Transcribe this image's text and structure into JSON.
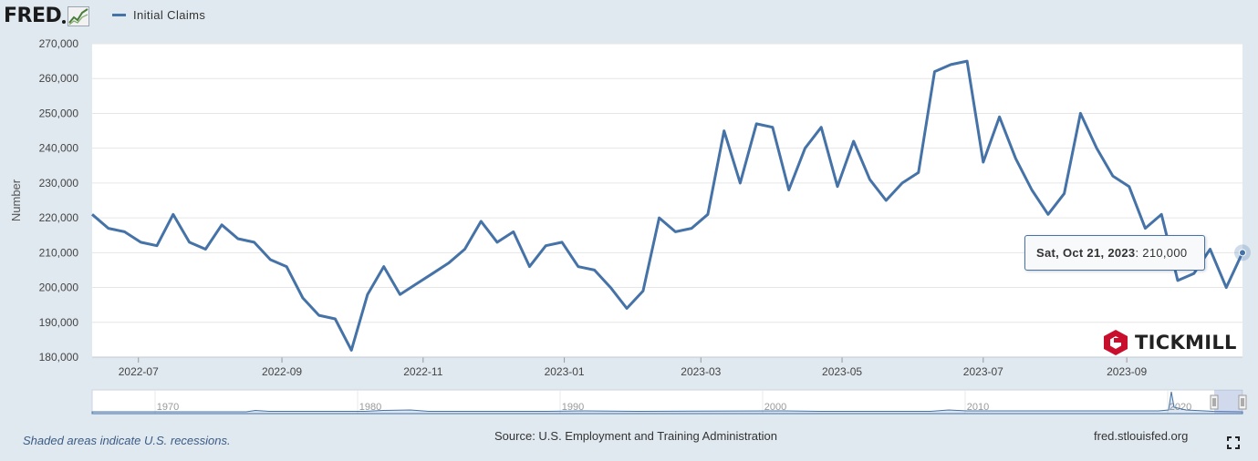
{
  "header": {
    "logo_text": "FRED",
    "logo_icon": "fred-chart-icon",
    "legend_label": "Initial Claims",
    "series_color": "#4572a7"
  },
  "chart_data": {
    "type": "line",
    "ylabel": "Number",
    "ylim": [
      180000,
      270000
    ],
    "yticks": [
      180000,
      190000,
      200000,
      210000,
      220000,
      230000,
      240000,
      250000,
      260000,
      270000
    ],
    "ytick_labels": [
      "180,000",
      "190,000",
      "200,000",
      "210,000",
      "220,000",
      "230,000",
      "240,000",
      "250,000",
      "260,000",
      "270,000"
    ],
    "xlim": [
      "2022-06-11",
      "2023-10-21"
    ],
    "xticks": [
      "2022-07-01",
      "2022-09-01",
      "2022-11-01",
      "2023-01-01",
      "2023-03-01",
      "2023-05-01",
      "2023-07-01",
      "2023-09-01"
    ],
    "xtick_labels": [
      "2022-07",
      "2022-09",
      "2022-11",
      "2023-01",
      "2023-03",
      "2023-05",
      "2023-07",
      "2023-09"
    ],
    "grid": true,
    "series": [
      {
        "name": "Initial Claims",
        "color": "#4572a7",
        "points": [
          [
            "2022-06-11",
            221000
          ],
          [
            "2022-06-18",
            217000
          ],
          [
            "2022-06-25",
            216000
          ],
          [
            "2022-07-02",
            213000
          ],
          [
            "2022-07-09",
            212000
          ],
          [
            "2022-07-16",
            221000
          ],
          [
            "2022-07-23",
            213000
          ],
          [
            "2022-07-30",
            211000
          ],
          [
            "2022-08-06",
            218000
          ],
          [
            "2022-08-13",
            214000
          ],
          [
            "2022-08-20",
            213000
          ],
          [
            "2022-08-27",
            208000
          ],
          [
            "2022-09-03",
            206000
          ],
          [
            "2022-09-10",
            197000
          ],
          [
            "2022-09-17",
            192000
          ],
          [
            "2022-09-24",
            191000
          ],
          [
            "2022-10-01",
            182000
          ],
          [
            "2022-10-08",
            198000
          ],
          [
            "2022-10-15",
            206000
          ],
          [
            "2022-10-22",
            198000
          ],
          [
            "2022-10-29",
            201000
          ],
          [
            "2022-11-05",
            204000
          ],
          [
            "2022-11-12",
            207000
          ],
          [
            "2022-11-19",
            211000
          ],
          [
            "2022-11-26",
            219000
          ],
          [
            "2022-12-03",
            213000
          ],
          [
            "2022-12-10",
            216000
          ],
          [
            "2022-12-17",
            206000
          ],
          [
            "2022-12-24",
            212000
          ],
          [
            "2022-12-31",
            213000
          ],
          [
            "2023-01-07",
            206000
          ],
          [
            "2023-01-14",
            205000
          ],
          [
            "2023-01-21",
            200000
          ],
          [
            "2023-01-28",
            194000
          ],
          [
            "2023-02-04",
            199000
          ],
          [
            "2023-02-11",
            220000
          ],
          [
            "2023-02-18",
            216000
          ],
          [
            "2023-02-25",
            217000
          ],
          [
            "2023-03-04",
            221000
          ],
          [
            "2023-03-11",
            245000
          ],
          [
            "2023-03-18",
            230000
          ],
          [
            "2023-03-25",
            247000
          ],
          [
            "2023-04-01",
            246000
          ],
          [
            "2023-04-08",
            228000
          ],
          [
            "2023-04-15",
            240000
          ],
          [
            "2023-04-22",
            246000
          ],
          [
            "2023-04-29",
            229000
          ],
          [
            "2023-05-06",
            242000
          ],
          [
            "2023-05-13",
            231000
          ],
          [
            "2023-05-20",
            225000
          ],
          [
            "2023-05-27",
            230000
          ],
          [
            "2023-06-03",
            233000
          ],
          [
            "2023-06-10",
            262000
          ],
          [
            "2023-06-17",
            264000
          ],
          [
            "2023-06-24",
            265000
          ],
          [
            "2023-07-01",
            236000
          ],
          [
            "2023-07-08",
            249000
          ],
          [
            "2023-07-15",
            237000
          ],
          [
            "2023-07-22",
            228000
          ],
          [
            "2023-07-29",
            221000
          ],
          [
            "2023-08-05",
            227000
          ],
          [
            "2023-08-12",
            250000
          ],
          [
            "2023-08-19",
            240000
          ],
          [
            "2023-08-26",
            232000
          ],
          [
            "2023-09-02",
            229000
          ],
          [
            "2023-09-09",
            217000
          ],
          [
            "2023-09-16",
            221000
          ],
          [
            "2023-09-23",
            202000
          ],
          [
            "2023-09-30",
            204000
          ],
          [
            "2023-10-07",
            211000
          ],
          [
            "2023-10-14",
            200000
          ],
          [
            "2023-10-21",
            210000
          ]
        ]
      }
    ],
    "navigator": {
      "tick_labels": [
        "1970",
        "1980",
        "1990",
        "2000",
        "2010",
        "2020"
      ]
    }
  },
  "tooltip": {
    "date": "Sat, Oct 21, 2023",
    "value": " 210,000"
  },
  "watermark": {
    "text": "TICKMILL",
    "color": "#c8102e"
  },
  "footer": {
    "recession_note": "Shaded areas indicate U.S. recessions.",
    "source": "Source: U.S. Employment and Training Administration",
    "url": "fred.stlouisfed.org",
    "fullscreen_icon": "fullscreen-icon"
  }
}
